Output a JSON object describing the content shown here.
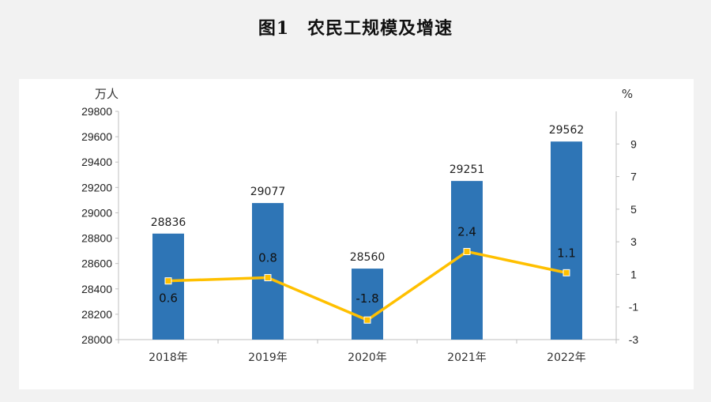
{
  "title": "图1　农民工规模及增速",
  "chart_data": {
    "type": "bar+line",
    "title": "图1　农民工规模及增速",
    "categories": [
      "2018年",
      "2019年",
      "2020年",
      "2021年",
      "2022年"
    ],
    "left_axis": {
      "unit": "万人",
      "ylim": [
        28000,
        29800
      ],
      "ticks": [
        28000,
        28200,
        28400,
        28600,
        28800,
        29000,
        29200,
        29400,
        29600,
        29800
      ]
    },
    "right_axis": {
      "unit": "%",
      "ylim": [
        -3,
        11
      ],
      "ticks": [
        -3,
        -1,
        1,
        3,
        5,
        7,
        9
      ]
    },
    "series": [
      {
        "type": "bar",
        "axis": "left",
        "color": "#2e75b6",
        "values": [
          28836,
          29077,
          28560,
          29251,
          29562
        ],
        "labels": [
          "28836",
          "29077",
          "28560",
          "29251",
          "29562"
        ]
      },
      {
        "type": "line",
        "axis": "right",
        "color": "#ffc000",
        "values": [
          0.6,
          0.8,
          -1.8,
          2.4,
          1.1
        ],
        "labels": [
          "0.6",
          "0.8",
          "-1.8",
          "2.4",
          "1.1"
        ]
      }
    ],
    "grid": false,
    "legend": "none"
  }
}
